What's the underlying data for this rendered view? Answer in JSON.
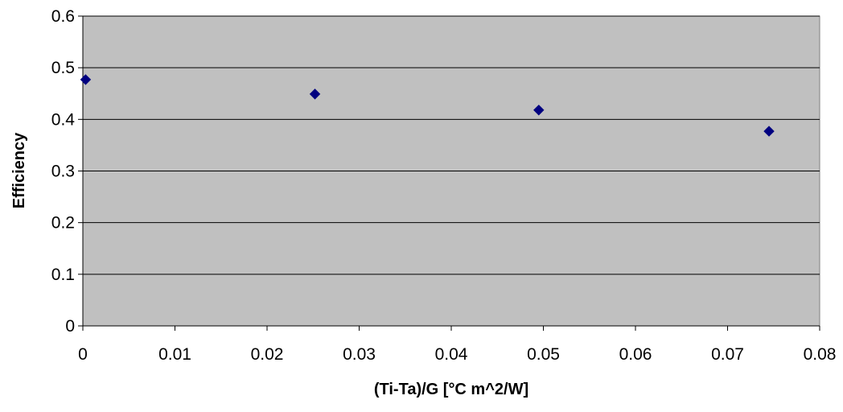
{
  "chart_data": {
    "type": "scatter",
    "title": "",
    "xlabel": "(Ti-Ta)/G  [°C m^2/W]",
    "ylabel": "Efficiency",
    "xlim": [
      0,
      0.08
    ],
    "ylim": [
      0,
      0.6
    ],
    "xticks": [
      "0",
      "0.01",
      "0.02",
      "0.03",
      "0.04",
      "0.05",
      "0.06",
      "0.07",
      "0.08"
    ],
    "yticks": [
      "0",
      "0.1",
      "0.2",
      "0.3",
      "0.4",
      "0.5",
      "0.6"
    ],
    "grid": "horizontal",
    "legend": "none",
    "marker": "diamond",
    "colors": {
      "plot_background": "#c0c0c0",
      "marker": "#000080",
      "gridline": "#000000"
    },
    "series": [
      {
        "x": [
          0.0003,
          0.0252,
          0.0495,
          0.0745
        ],
        "y": [
          0.477,
          0.449,
          0.418,
          0.377
        ]
      }
    ]
  }
}
